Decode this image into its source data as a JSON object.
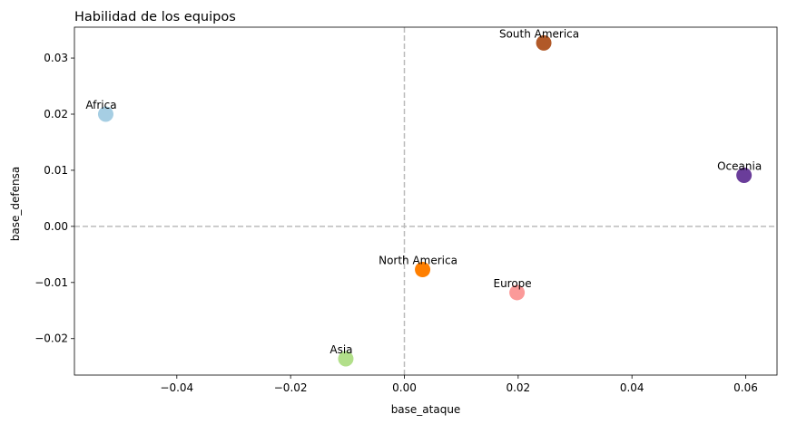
{
  "chart_data": {
    "type": "scatter",
    "title": "Habilidad de los equipos",
    "xlabel": "base_ataque",
    "ylabel": "base_defensa",
    "xlim": [
      -0.058,
      0.0655
    ],
    "ylim": [
      -0.0265,
      0.0355
    ],
    "xticks": [
      -0.04,
      -0.02,
      0.0,
      0.02,
      0.04,
      0.06
    ],
    "yticks": [
      -0.02,
      -0.01,
      0.0,
      0.01,
      0.02,
      0.03
    ],
    "xtick_labels": [
      "−0.04",
      "−0.02",
      "0.00",
      "0.02",
      "0.04",
      "0.06"
    ],
    "ytick_labels": [
      "−0.02",
      "−0.01",
      "0.00",
      "0.01",
      "0.02",
      "0.03"
    ],
    "reference_lines": {
      "x": 0.0,
      "y": 0.0,
      "style": "dashed",
      "color": "#bbbbbb"
    },
    "grid": false,
    "points": [
      {
        "label": "Africa",
        "x": -0.0525,
        "y": 0.02,
        "color": "#a6cee3"
      },
      {
        "label": "South America",
        "x": 0.0245,
        "y": 0.0327,
        "color": "#b15928"
      },
      {
        "label": "Oceania",
        "x": 0.0597,
        "y": 0.0091,
        "color": "#6a3d9a"
      },
      {
        "label": "North America",
        "x": 0.0032,
        "y": -0.0077,
        "color": "#ff7f00"
      },
      {
        "label": "Europe",
        "x": 0.0198,
        "y": -0.0118,
        "color": "#fb9a99"
      },
      {
        "label": "Asia",
        "x": -0.0103,
        "y": -0.0236,
        "color": "#b2df8a"
      }
    ]
  }
}
